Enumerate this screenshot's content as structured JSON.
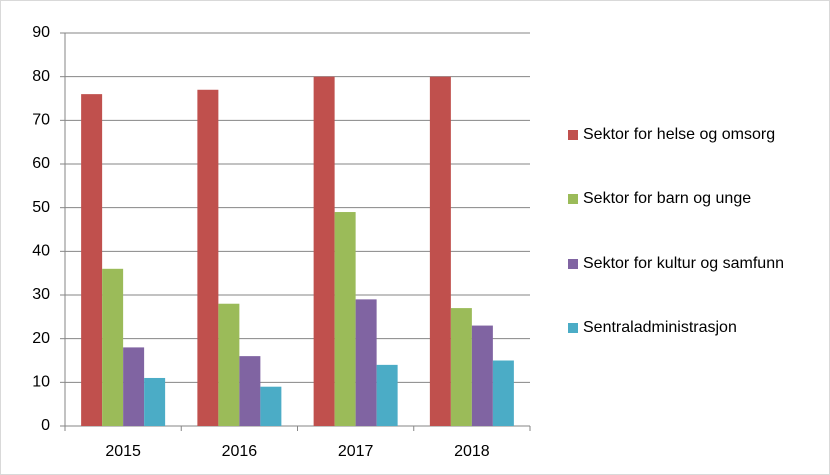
{
  "chart_data": {
    "type": "bar",
    "categories": [
      "2015",
      "2016",
      "2017",
      "2018"
    ],
    "series": [
      {
        "name": "Sektor for helse og omsorg",
        "color": "#c0504d",
        "values": [
          76,
          77,
          80,
          80
        ]
      },
      {
        "name": "Sektor for barn og unge",
        "color": "#9bbb59",
        "values": [
          36,
          28,
          49,
          27
        ]
      },
      {
        "name": "Sektor for kultur og samfunn",
        "color": "#8064a2",
        "values": [
          18,
          16,
          29,
          23
        ]
      },
      {
        "name": "Sentraladministrasjon",
        "color": "#4bacc6",
        "values": [
          11,
          9,
          14,
          15
        ]
      }
    ],
    "ylim": [
      0,
      90
    ],
    "yticks": [
      0,
      10,
      20,
      30,
      40,
      50,
      60,
      70,
      80,
      90
    ],
    "grid": true,
    "legend": "right"
  }
}
